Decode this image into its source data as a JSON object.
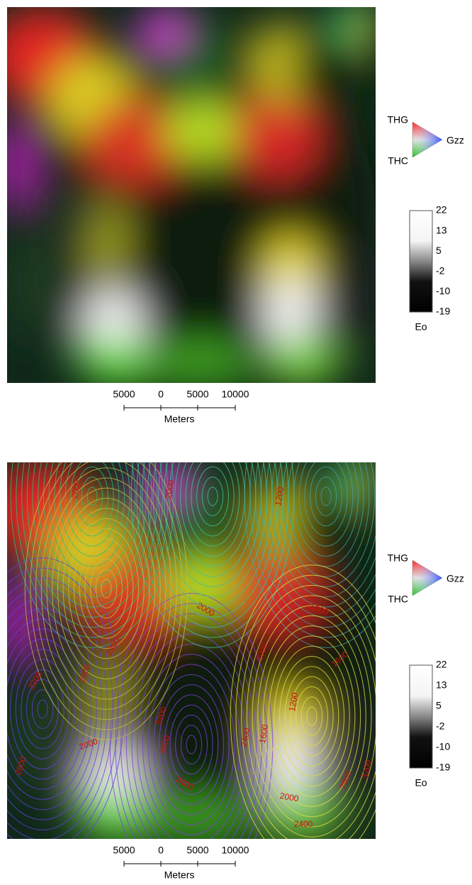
{
  "panels": [
    {
      "scale": {
        "labels": [
          "5000",
          "0",
          "5000",
          "10000"
        ],
        "unit": "Meters"
      },
      "ternary": {
        "top": "THG",
        "right": "Gzz",
        "bottom": "THC"
      },
      "colorbar": {
        "labels": [
          "22",
          "13",
          "5",
          "-2",
          "-10",
          "-19"
        ],
        "title": "Eo"
      }
    },
    {
      "scale": {
        "labels": [
          "5000",
          "0",
          "5000",
          "10000"
        ],
        "unit": "Meters"
      },
      "ternary": {
        "top": "THG",
        "right": "Gzz",
        "bottom": "THC"
      },
      "colorbar": {
        "labels": [
          "22",
          "13",
          "5",
          "-2",
          "-10",
          "-19"
        ],
        "title": "Eo"
      },
      "contour_labels": [
        "2000",
        "2000",
        "2400",
        "1200",
        "2000",
        "2000",
        "1200",
        "2400",
        "2800",
        "2400",
        "1600",
        "1200",
        "1600",
        "2000",
        "3200",
        "2800",
        "2800",
        "3200",
        "2400",
        "2000",
        "2400",
        "3200"
      ]
    }
  ]
}
